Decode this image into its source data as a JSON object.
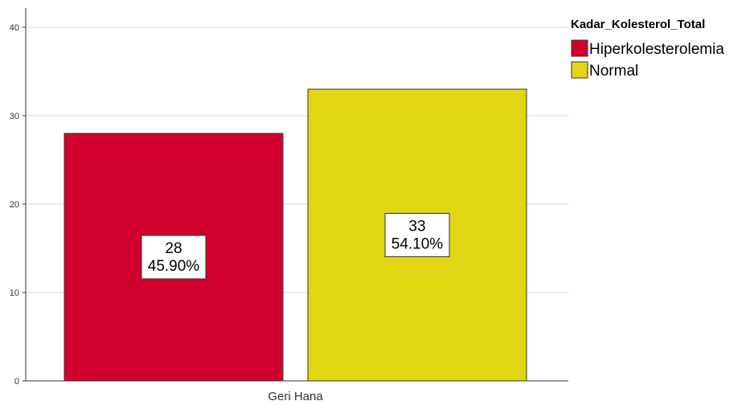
{
  "chart_data": {
    "type": "bar",
    "categories": [
      "Geri Hana"
    ],
    "series": [
      {
        "name": "Hiperkolesterolemia",
        "values": [
          28
        ],
        "percent_labels": [
          "45.90%"
        ],
        "color": "#d2002e"
      },
      {
        "name": "Normal",
        "values": [
          33
        ],
        "percent_labels": [
          "54.10%"
        ],
        "color": "#e2d514"
      }
    ],
    "title": "",
    "xlabel": "",
    "ylabel": "",
    "ylim": [
      0,
      40
    ],
    "yticks": [
      0,
      10,
      20,
      30,
      40
    ],
    "grid": true,
    "legend": {
      "title": "Kadar_Kolesterol_Total",
      "placement": "top-right"
    }
  }
}
